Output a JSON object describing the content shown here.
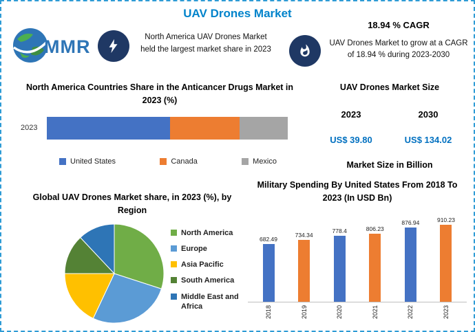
{
  "page": {
    "title": "UAV Drones Market"
  },
  "logo": {
    "text": "MMR"
  },
  "icons": {
    "logo": "globe-icon",
    "left_callout": "lightning-icon",
    "right_callout": "flame-icon"
  },
  "colors": {
    "accent_blue": "#0083CB",
    "value_blue": "#0070C0",
    "navy_circle": "#1F3864",
    "border_dash": "#2E9BD5"
  },
  "highlight_left": {
    "text": "North America UAV Drones Market held the largest market share in 2023"
  },
  "highlight_right": {
    "heading": "18.94 % CAGR",
    "text": "UAV Drones Market to grow at a CAGR of 18.94 % during 2023-2030"
  },
  "market_size": {
    "title": "UAV Drones Market Size",
    "col1_year": "2023",
    "col2_year": "2030",
    "col1_value": "US$ 39.80",
    "col2_value": "US$ 134.02",
    "subtitle": "Market Size in Billion"
  },
  "chart_data": [
    {
      "id": "na_countries_share",
      "type": "bar",
      "orientation": "horizontal_stacked",
      "title": "North America Countries Share in the Anticancer Drugs Market in 2023 (%)",
      "categories": [
        "2023"
      ],
      "series": [
        {
          "name": "United States",
          "value": 51,
          "color": "#4472C4"
        },
        {
          "name": "Canada",
          "value": 29,
          "color": "#ED7D31"
        },
        {
          "name": "Mexico",
          "value": 20,
          "color": "#A5A5A5"
        }
      ],
      "legend_position": "bottom",
      "xlim": [
        0,
        100
      ]
    },
    {
      "id": "region_share_pie",
      "type": "pie",
      "title": "Global UAV Drones Market share, in 2023 (%), by Region",
      "labels": [
        "North America",
        "Europe",
        "Asia Pacific",
        "South America",
        "Middle East and Africa"
      ],
      "values": [
        30,
        27,
        18,
        13,
        12
      ],
      "colors": [
        "#70AD47",
        "#5B9BD5",
        "#FFC000",
        "#548235",
        "#2E75B6"
      ],
      "start_angle_deg": 0,
      "legend_position": "right"
    },
    {
      "id": "military_spending",
      "type": "bar",
      "title": "Military Spending By United States From 2018 To 2023 (In USD Bn)",
      "categories": [
        "2018",
        "2019",
        "2020",
        "2021",
        "2022",
        "2023"
      ],
      "values": [
        682.49,
        734.34,
        778.4,
        806.23,
        876.94,
        910.23
      ],
      "bar_colors": [
        "#4472C4",
        "#ED7D31",
        "#4472C4",
        "#ED7D31",
        "#4472C4",
        "#ED7D31"
      ],
      "ylim": [
        0,
        950
      ],
      "data_labels": true,
      "x_tick_rotation": 90
    }
  ]
}
